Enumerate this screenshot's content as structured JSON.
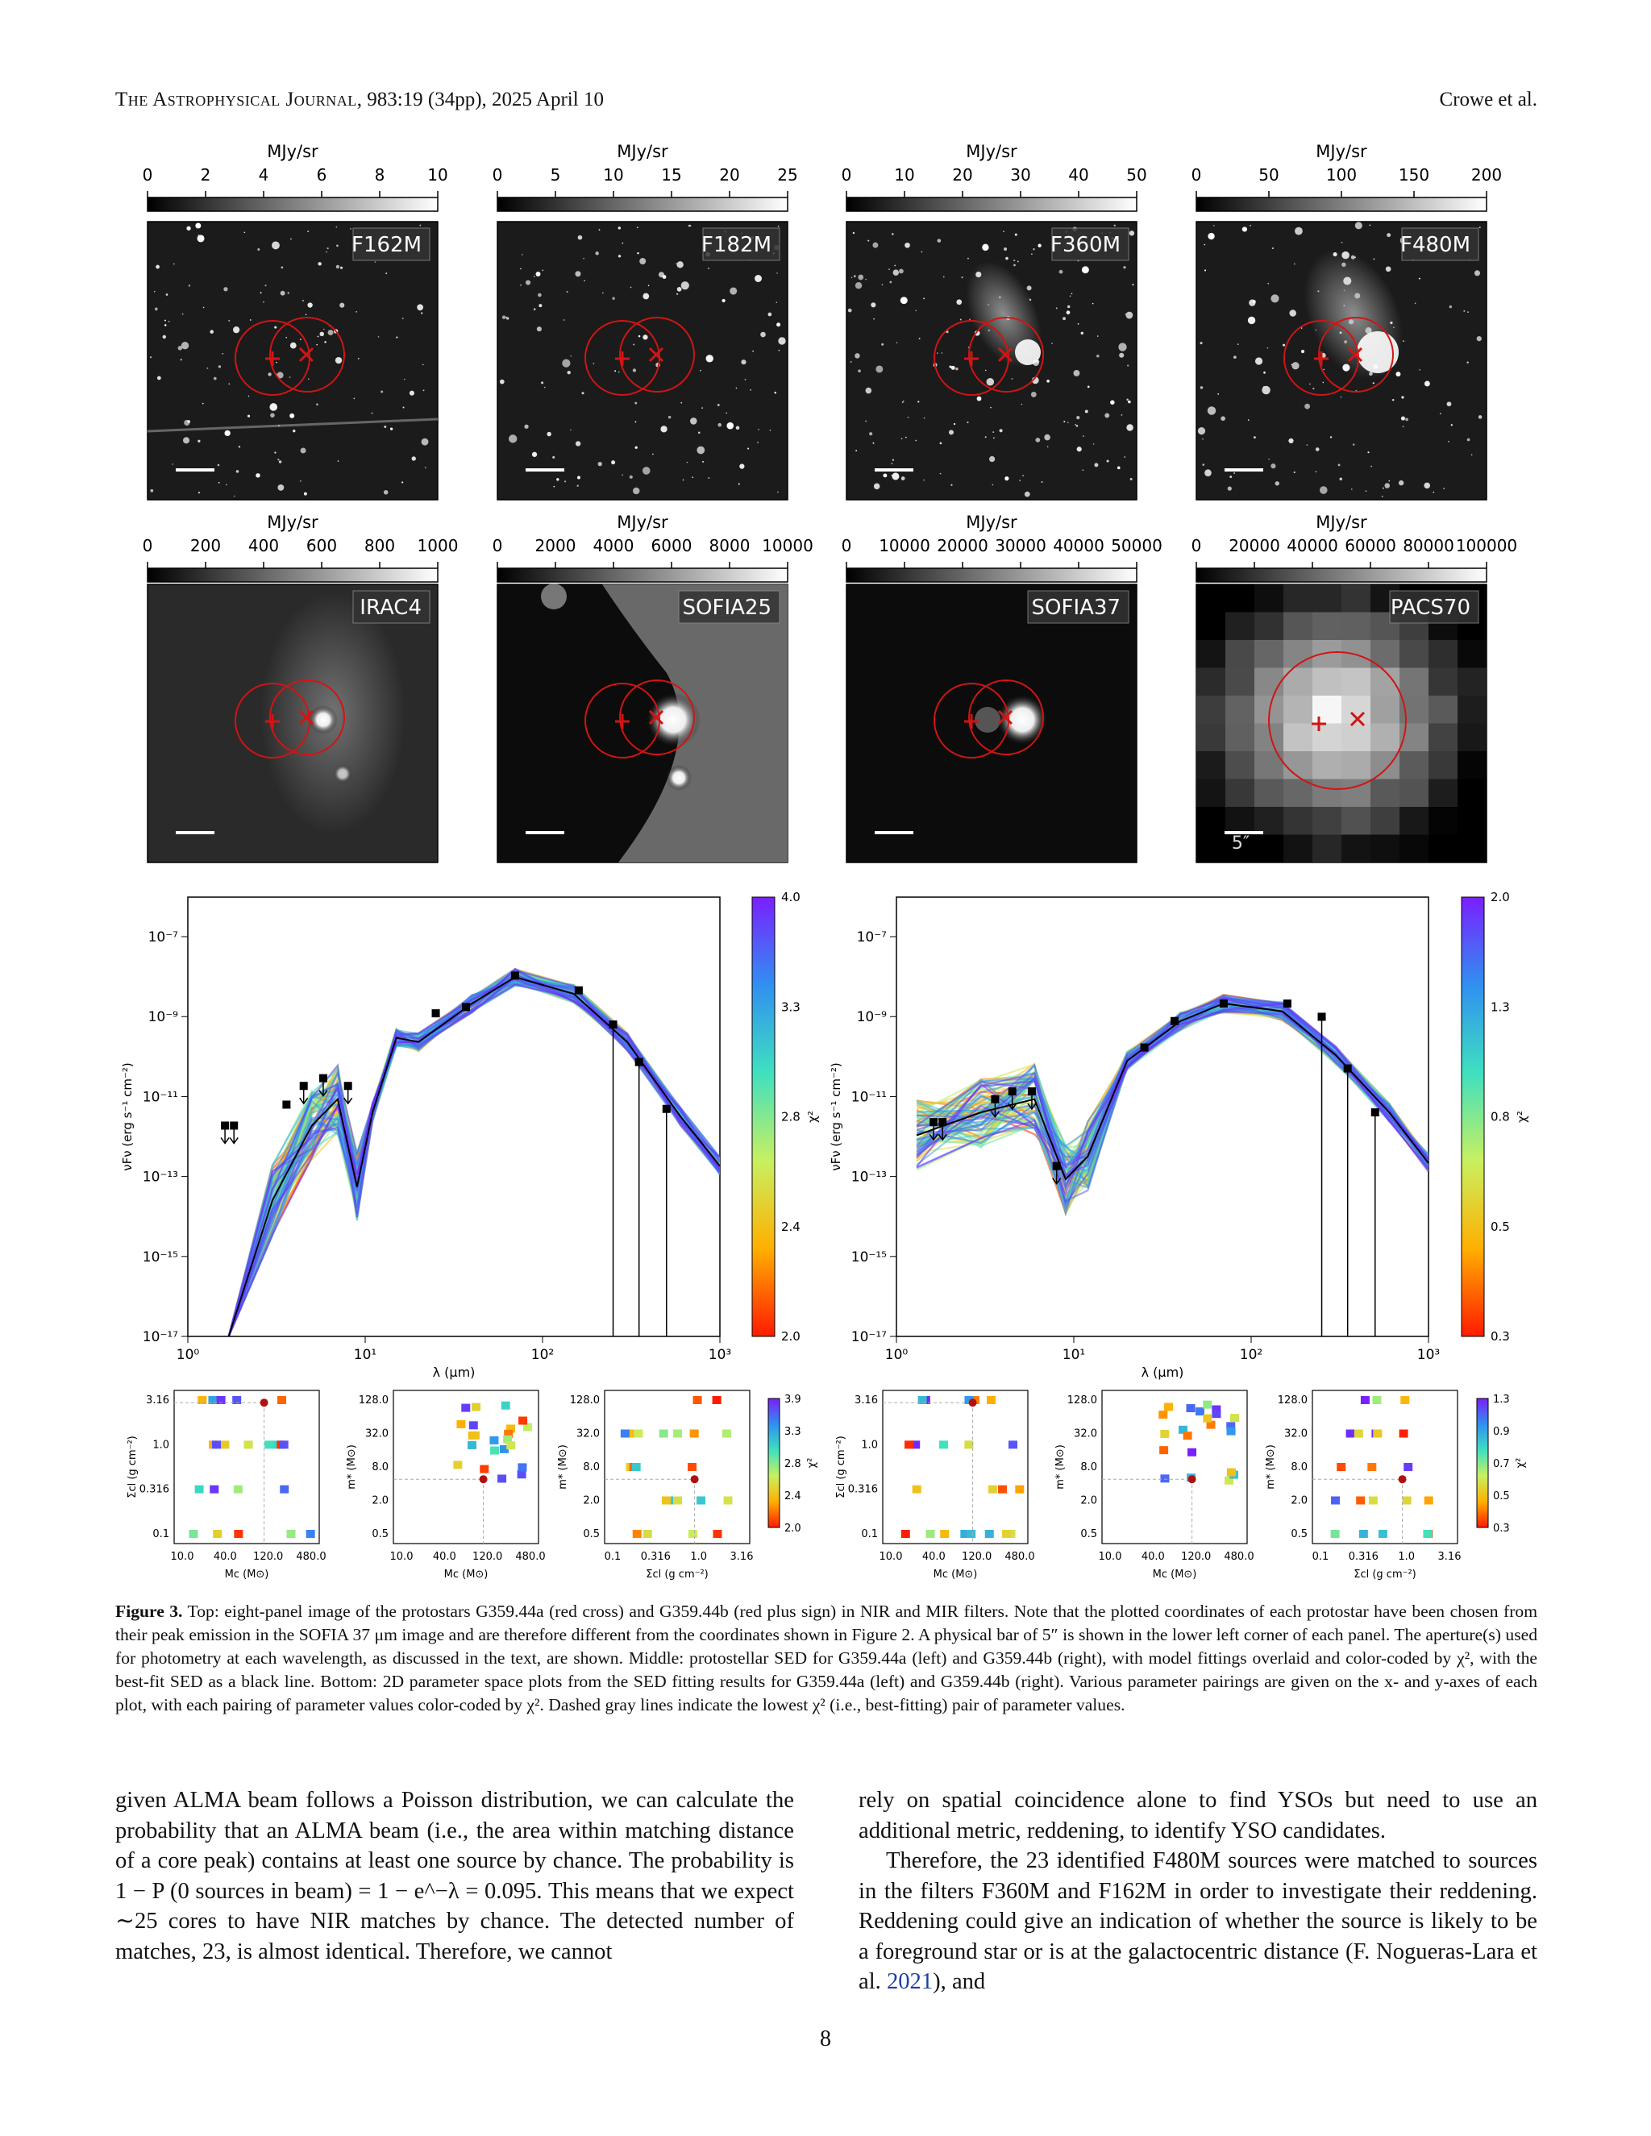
{
  "header": {
    "journal": "The Astrophysical Journal",
    "citation": ", 983:19 (34pp), 2025 April 10",
    "authors": "Crowe et al."
  },
  "image_panels": [
    {
      "filter": "F162M",
      "unit": "MJy/sr",
      "ticks": [
        "0",
        "2",
        "4",
        "6",
        "8",
        "10"
      ]
    },
    {
      "filter": "F182M",
      "unit": "MJy/sr",
      "ticks": [
        "0",
        "5",
        "10",
        "15",
        "20",
        "25"
      ]
    },
    {
      "filter": "F360M",
      "unit": "MJy/sr",
      "ticks": [
        "0",
        "10",
        "20",
        "30",
        "40",
        "50"
      ]
    },
    {
      "filter": "F480M",
      "unit": "MJy/sr",
      "ticks": [
        "0",
        "50",
        "100",
        "150",
        "200"
      ]
    },
    {
      "filter": "IRAC4",
      "unit": "MJy/sr",
      "ticks": [
        "0",
        "200",
        "400",
        "600",
        "800",
        "1000"
      ]
    },
    {
      "filter": "SOFIA25",
      "unit": "MJy/sr",
      "ticks": [
        "0",
        "2000",
        "4000",
        "6000",
        "8000",
        "10000"
      ]
    },
    {
      "filter": "SOFIA37",
      "unit": "MJy/sr",
      "ticks": [
        "0",
        "10000",
        "20000",
        "30000",
        "40000",
        "50000"
      ]
    },
    {
      "filter": "PACS70",
      "unit": "MJy/sr",
      "ticks": [
        "0",
        "20000",
        "40000",
        "60000",
        "80000",
        "100000"
      ]
    }
  ],
  "scalebar_label": "5″",
  "chart_data": [
    {
      "type": "line",
      "panel": "SED G359.44a",
      "xlabel": "λ (μm)",
      "ylabel": "νFν (erg s⁻¹ cm⁻²)",
      "xscale": "log",
      "yscale": "log",
      "x_ticks": [
        "10⁰",
        "10¹",
        "10²",
        "10³"
      ],
      "y_ticks": [
        "10⁻⁷",
        "10⁻⁹",
        "10⁻¹¹",
        "10⁻¹³",
        "10⁻¹⁵",
        "10⁻¹⁷"
      ],
      "colorbar": {
        "label": "χ²",
        "ticks": [
          "4.0",
          "3.3",
          "2.8",
          "2.4",
          "2.0"
        ]
      },
      "points": [
        {
          "x": 1.62,
          "y": 5e-12,
          "upper": true
        },
        {
          "x": 1.82,
          "y": 5e-12,
          "upper": true
        },
        {
          "x": 3.6,
          "y": 1.5e-11
        },
        {
          "x": 4.5,
          "y": 4e-11,
          "upper": true
        },
        {
          "x": 5.8,
          "y": 6e-11,
          "upper": true
        },
        {
          "x": 8.0,
          "y": 4e-11,
          "upper": true
        },
        {
          "x": 37,
          "y": 2.5e-09
        },
        {
          "x": 25,
          "y": 1.8e-09
        },
        {
          "x": 70,
          "y": 1.3e-08
        },
        {
          "x": 160,
          "y": 6e-09
        },
        {
          "x": 250,
          "y": 1e-09
        },
        {
          "x": 350,
          "y": 1.4e-10
        },
        {
          "x": 500,
          "y": 1.2e-11
        }
      ],
      "best_fit": [
        [
          1.7,
          1e-17
        ],
        [
          3,
          1e-13
        ],
        [
          5,
          5e-12
        ],
        [
          7,
          2e-11
        ],
        [
          9,
          2e-13
        ],
        [
          11,
          1e-11
        ],
        [
          15,
          5e-10
        ],
        [
          20,
          4e-10
        ],
        [
          40,
          3e-09
        ],
        [
          70,
          1.2e-08
        ],
        [
          150,
          5e-09
        ],
        [
          300,
          4e-10
        ],
        [
          600,
          8e-12
        ],
        [
          1000,
          6e-13
        ]
      ]
    },
    {
      "type": "line",
      "panel": "SED G359.44b",
      "xlabel": "λ (μm)",
      "ylabel": "νFν (erg s⁻¹ cm⁻²)",
      "xscale": "log",
      "yscale": "log",
      "x_ticks": [
        "10⁰",
        "10¹",
        "10²",
        "10³"
      ],
      "y_ticks": [
        "10⁻⁷",
        "10⁻⁹",
        "10⁻¹¹",
        "10⁻¹³",
        "10⁻¹⁵",
        "10⁻¹⁷"
      ],
      "colorbar": {
        "label": "χ²",
        "ticks": [
          "2.0",
          "1.3",
          "0.8",
          "0.5",
          "0.3"
        ]
      },
      "points": [
        {
          "x": 1.62,
          "y": 6e-12,
          "upper": true
        },
        {
          "x": 1.82,
          "y": 6e-12,
          "upper": true
        },
        {
          "x": 3.6,
          "y": 2e-11,
          "upper": true
        },
        {
          "x": 4.5,
          "y": 3e-11,
          "upper": true
        },
        {
          "x": 5.8,
          "y": 3e-11,
          "upper": true
        },
        {
          "x": 8.0,
          "y": 6e-13,
          "upper": true
        },
        {
          "x": 25,
          "y": 3e-10
        },
        {
          "x": 37,
          "y": 1.2e-09
        },
        {
          "x": 70,
          "y": 3e-09
        },
        {
          "x": 160,
          "y": 3e-09
        },
        {
          "x": 250,
          "y": 1.5e-09
        },
        {
          "x": 350,
          "y": 1e-10
        },
        {
          "x": 500,
          "y": 1e-11
        }
      ],
      "best_fit": [
        [
          1.3,
          3e-12
        ],
        [
          3,
          1e-11
        ],
        [
          6,
          2e-11
        ],
        [
          9,
          3e-13
        ],
        [
          12,
          1e-12
        ],
        [
          20,
          1.5e-10
        ],
        [
          40,
          1.2e-09
        ],
        [
          70,
          3e-09
        ],
        [
          150,
          2e-09
        ],
        [
          300,
          2e-10
        ],
        [
          600,
          1e-11
        ],
        [
          1000,
          7e-13
        ]
      ]
    }
  ],
  "param_groups": [
    {
      "colorbar": {
        "label": "χ²",
        "ticks": [
          "3.9",
          "3.3",
          "2.8",
          "2.4",
          "2.0"
        ]
      },
      "plots": [
        {
          "xlabel": "Mc (M⊙)",
          "ylabel": "Σcl (g cm⁻²)",
          "x_ticks": [
            "10.0",
            "40.0",
            "120.0",
            "480.0"
          ],
          "y_ticks": [
            "3.16",
            "1.0",
            "0.316",
            "0.1"
          ]
        },
        {
          "xlabel": "Mc (M⊙)",
          "ylabel": "m* (M⊙)",
          "x_ticks": [
            "10.0",
            "40.0",
            "120.0",
            "480.0"
          ],
          "y_ticks": [
            "128.0",
            "32.0",
            "8.0",
            "2.0",
            "0.5"
          ]
        },
        {
          "xlabel": "Σcl (g cm⁻²)",
          "ylabel": "m* (M⊙)",
          "x_ticks": [
            "0.1",
            "0.316",
            "1.0",
            "3.16"
          ],
          "y_ticks": [
            "128.0",
            "32.0",
            "8.0",
            "2.0",
            "0.5"
          ]
        }
      ]
    },
    {
      "colorbar": {
        "label": "χ²",
        "ticks": [
          "1.3",
          "0.9",
          "0.7",
          "0.5",
          "0.3"
        ]
      },
      "plots": [
        {
          "xlabel": "Mc (M⊙)",
          "ylabel": "Σcl (g cm⁻²)",
          "x_ticks": [
            "10.0",
            "40.0",
            "120.0",
            "480.0"
          ],
          "y_ticks": [
            "3.16",
            "1.0",
            "0.316",
            "0.1"
          ]
        },
        {
          "xlabel": "Mc (M⊙)",
          "ylabel": "m* (M⊙)",
          "x_ticks": [
            "10.0",
            "40.0",
            "120.0",
            "480.0"
          ],
          "y_ticks": [
            "128.0",
            "32.0",
            "8.0",
            "2.0",
            "0.5"
          ]
        },
        {
          "xlabel": "Σcl (g cm⁻²)",
          "ylabel": "m* (M⊙)",
          "x_ticks": [
            "0.1",
            "0.316",
            "1.0",
            "3.16"
          ],
          "y_ticks": [
            "128.0",
            "32.0",
            "8.0",
            "2.0",
            "0.5"
          ]
        }
      ]
    }
  ],
  "caption": {
    "label": "Figure 3.",
    "text": " Top: eight-panel image of the protostars G359.44a (red cross) and G359.44b (red plus sign) in NIR and MIR filters. Note that the plotted coordinates of each protostar have been chosen from their peak emission in the SOFIA 37 μm image and are therefore different from the coordinates shown in Figure 2. A physical bar of 5″ is shown in the lower left corner of each panel. The aperture(s) used for photometry at each wavelength, as discussed in the text, are shown. Middle: protostellar SED for G359.44a (left) and G359.44b (right), with model fittings overlaid and color-coded by χ², with the best-fit SED as a black line. Bottom: 2D parameter space plots from the SED fitting results for G359.44a (left) and G359.44b (right). Various parameter pairings are given on the x- and y-axes of each plot, with each pairing of parameter values color-coded by χ². Dashed gray lines indicate the lowest χ² (i.e., best-fitting) pair of parameter values."
  },
  "body": {
    "left": "given ALMA beam follows a Poisson distribution, we can calculate the probability that an ALMA beam (i.e., the area within matching distance of a core peak) contains at least one source by chance. The probability is 1 − P (0 sources in beam) = 1 − e^−λ = 0.095. This means that we expect ∼25 cores to have NIR matches by chance. The detected number of matches, 23, is almost identical. Therefore, we cannot",
    "right_p1": "rely on spatial coincidence alone to find YSOs but need to use an additional metric, reddening, to identify YSO candidates.",
    "right_p2_a": "Therefore, the 23 identified F480M sources were matched to sources in the filters F360M and F162M in order to investigate their reddening. Reddening could give an indication of whether the source is likely to be a foreground star or is at the galactocentric distance (F. Nogueras-Lara et al. ",
    "right_p2_link": "2021",
    "right_p2_b": "), and"
  },
  "page_number": "8"
}
